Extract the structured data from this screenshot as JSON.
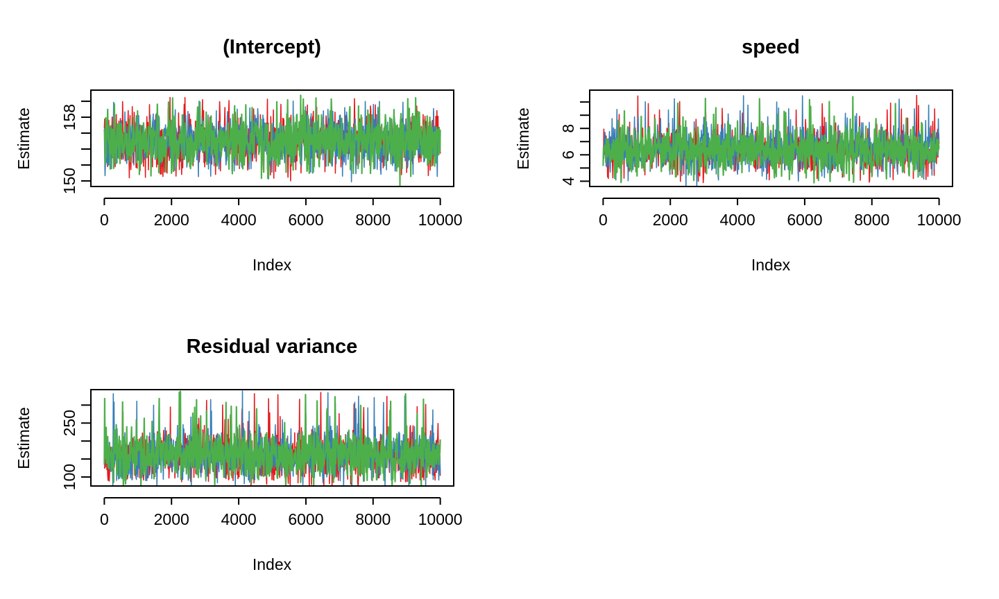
{
  "colors": {
    "chain1": "#E41A1C",
    "chain2": "#377EB8",
    "chain3": "#4DAF4A"
  },
  "chart_data": [
    {
      "type": "line",
      "title": "(Intercept)",
      "xlabel": "Index",
      "ylabel": "Estimate",
      "xlim": [
        0,
        10000
      ],
      "ylim": [
        149.3,
        161.4
      ],
      "x_ticks": [
        "0",
        "2000",
        "4000",
        "6000",
        "8000",
        "10000"
      ],
      "y_ticks": [
        "150",
        "158"
      ],
      "y_tick_positions": [
        150,
        152,
        154,
        156,
        158,
        160
      ],
      "band": {
        "center": 155.1,
        "core_half_width": 1.7,
        "spike_low": 150.5,
        "spike_high": 160.5
      },
      "series": [
        {
          "color": "#E41A1C"
        },
        {
          "color": "#377EB8"
        },
        {
          "color": "#4DAF4A"
        }
      ]
    },
    {
      "type": "line",
      "title": "speed",
      "xlabel": "Index",
      "ylabel": "Estimate",
      "xlim": [
        0,
        10000
      ],
      "ylim": [
        3.6,
        10.9
      ],
      "x_ticks": [
        "0",
        "2000",
        "4000",
        "6000",
        "8000",
        "10000"
      ],
      "y_ticks": [
        "4",
        "6",
        "8"
      ],
      "y_tick_positions": [
        4,
        5,
        6,
        7,
        8,
        9,
        10
      ],
      "band": {
        "center": 6.4,
        "core_half_width": 0.9,
        "spike_low": 4.0,
        "spike_high": 10.5
      },
      "series": [
        {
          "color": "#E41A1C"
        },
        {
          "color": "#377EB8"
        },
        {
          "color": "#4DAF4A"
        }
      ]
    },
    {
      "type": "line",
      "title": "Residual variance",
      "xlabel": "Index",
      "ylabel": "Estimate",
      "xlim": [
        0,
        10000
      ],
      "ylim": [
        75,
        343
      ],
      "x_ticks": [
        "0",
        "2000",
        "4000",
        "6000",
        "8000",
        "10000"
      ],
      "y_ticks": [
        "100",
        "250"
      ],
      "y_tick_positions": [
        100,
        150,
        200,
        250,
        300
      ],
      "band": {
        "center": 160,
        "core_half_width": 35,
        "spike_low": 90,
        "spike_high": 340
      },
      "series": [
        {
          "color": "#E41A1C"
        },
        {
          "color": "#377EB8"
        },
        {
          "color": "#4DAF4A"
        }
      ]
    }
  ]
}
